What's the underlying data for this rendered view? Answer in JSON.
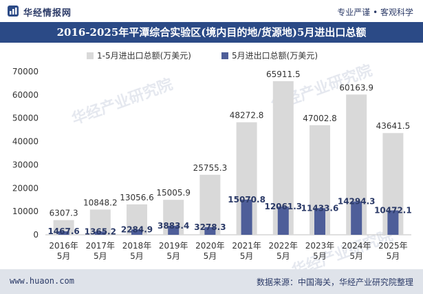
{
  "header": {
    "brand": "华经情报网",
    "slogan": "专业严谨 • 客观科学"
  },
  "title": "2016-2025年平潭综合实验区(境内目的地/货源地)5月进出口总额",
  "footer": {
    "website": "www.huaon.com",
    "source": "数据来源：中国海关，华经产业研究院整理"
  },
  "watermark": {
    "text": "华经产业研究院",
    "url": "www.huaon.com"
  },
  "colors": {
    "series1": "#d9d9d9",
    "series2": "#4e5e99",
    "title_bg": "#2b4a86",
    "footer_bg": "#dfe3ea"
  },
  "chart_data": {
    "type": "bar",
    "categories": [
      "2016年\n5月",
      "2017年\n5月",
      "2018年\n5月",
      "2019年\n5月",
      "2020年\n5月",
      "2021年\n5月",
      "2022年\n5月",
      "2023年\n5月",
      "2024年\n5月",
      "2025年\n5月"
    ],
    "series": [
      {
        "name": "1-5月进出口总额(万美元)",
        "values": [
          6307.3,
          10848.2,
          13056.6,
          15005.9,
          25755.3,
          48272.8,
          65911.5,
          47002.8,
          60163.9,
          43641.5
        ]
      },
      {
        "name": "5月进出口总额(万美元)",
        "values": [
          1467.6,
          1365.2,
          2284.9,
          3883.4,
          3278.3,
          15070.8,
          12061.3,
          11433.6,
          14294.3,
          10472.1
        ]
      }
    ],
    "ylim": [
      0,
      70000
    ],
    "yticks": [
      0,
      10000,
      20000,
      30000,
      40000,
      50000,
      60000,
      70000
    ],
    "grid": false,
    "legend": "top-center"
  }
}
